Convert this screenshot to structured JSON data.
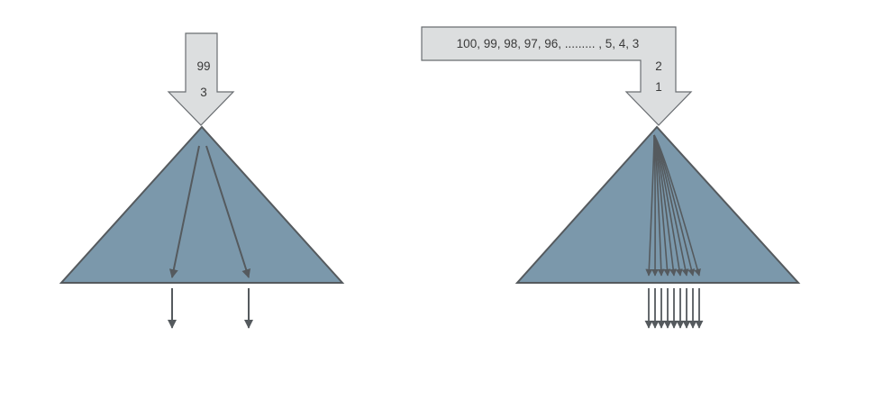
{
  "left": {
    "input_labels": [
      "99",
      "3"
    ],
    "colors": {
      "arrow_fill": "#dcdedf",
      "triangle_fill": "#7b98ab",
      "stroke": "#555a5e"
    }
  },
  "right": {
    "sequence_label": "100, 99, 98, 97, 96, ......... , 5, 4, 3",
    "input_labels": [
      "2",
      "1"
    ],
    "colors": {
      "arrow_fill": "#dcdedf",
      "triangle_fill": "#7b98ab",
      "stroke": "#555a5e"
    }
  }
}
